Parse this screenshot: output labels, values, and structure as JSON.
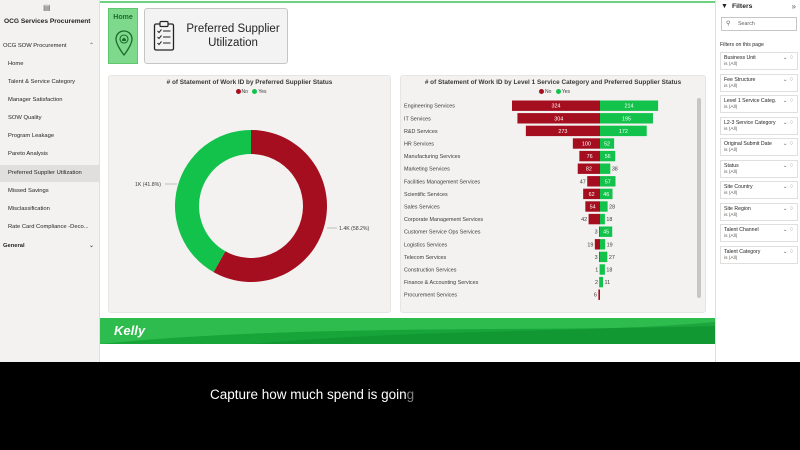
{
  "nav": {
    "app_title": "OCG Services Procurement",
    "section1": "OCG SOW Procurement",
    "items": [
      {
        "label": "Home"
      },
      {
        "label": "Talent & Service Category"
      },
      {
        "label": "Manager Satisfaction"
      },
      {
        "label": "SOW Quality"
      },
      {
        "label": "Program Leakage"
      },
      {
        "label": "Pareto Analysis"
      },
      {
        "label": "Preferred Supplier Utilization"
      },
      {
        "label": "Missed Savings"
      },
      {
        "label": "Misclassification"
      },
      {
        "label": "Rate Card Compliance -Deco..."
      }
    ],
    "active_index": 6,
    "section2": "General"
  },
  "header": {
    "home_label": "Home",
    "title": "Preferred Supplier Utilization"
  },
  "colors": {
    "no": "#a50e1e",
    "yes": "#12c24a",
    "accent": "#2fbf4a"
  },
  "donut": {
    "title": "# of Statement of Work ID by Preferred Supplier Status",
    "legend": [
      "No",
      "Yes"
    ],
    "label_yes": "1K (41.8%)",
    "label_no": "1.4K (58.2%)",
    "chart_data": {
      "type": "pie",
      "categories": [
        "No",
        "Yes"
      ],
      "values": [
        58.2,
        41.8
      ],
      "display_labels": [
        "1.4K (58.2%)",
        "1K (41.8%)"
      ]
    }
  },
  "bars": {
    "title": "# of Statement of Work ID by Level 1 Service Category and Preferred Supplier Status",
    "legend": [
      "No",
      "Yes"
    ],
    "chart_data": {
      "type": "bar",
      "categories": [
        "Engineering Services",
        "IT Services",
        "R&D Services",
        "HR Services",
        "Manufacturing Services",
        "Marketing Services",
        "Facilities Management Services",
        "Scientific Services",
        "Sales Services",
        "Corporate Management Services",
        "Customer Service Ops Services",
        "Logistics Services",
        "Telecom Services",
        "Construction Services",
        "Finance & Accounting Services",
        "Procurement Services"
      ],
      "series": [
        {
          "name": "No",
          "values": [
            324,
            304,
            273,
            100,
            76,
            82,
            47,
            62,
            54,
            42,
            3,
            19,
            3,
            1,
            2,
            6
          ]
        },
        {
          "name": "Yes",
          "values": [
            214,
            195,
            172,
            52,
            56,
            38,
            57,
            46,
            28,
            18,
            45,
            19,
            27,
            18,
            11,
            0
          ]
        }
      ]
    }
  },
  "banner": {
    "brand": "Kelly"
  },
  "filters": {
    "title": "Filters",
    "search_placeholder": "Search",
    "on_page_label": "Filters on this page",
    "cards": [
      {
        "name": "Business Unit",
        "value": "is (All)"
      },
      {
        "name": "Fee Structure",
        "value": "is (All)"
      },
      {
        "name": "Level 1 Service Categ...",
        "value": "is (All)"
      },
      {
        "name": "L2-3 Service Category",
        "value": "is (All)"
      },
      {
        "name": "Original Submit Date",
        "value": "is (All)"
      },
      {
        "name": "Status",
        "value": "is (All)"
      },
      {
        "name": "Site Country",
        "value": "is (All)"
      },
      {
        "name": "Site Region",
        "value": "is (All)"
      },
      {
        "name": "Talent Channel",
        "value": "is (All)"
      },
      {
        "name": "Talent Category",
        "value": "is (All)"
      }
    ]
  },
  "caption": {
    "text": "Capture how much spend is goin",
    "fading": "g"
  }
}
